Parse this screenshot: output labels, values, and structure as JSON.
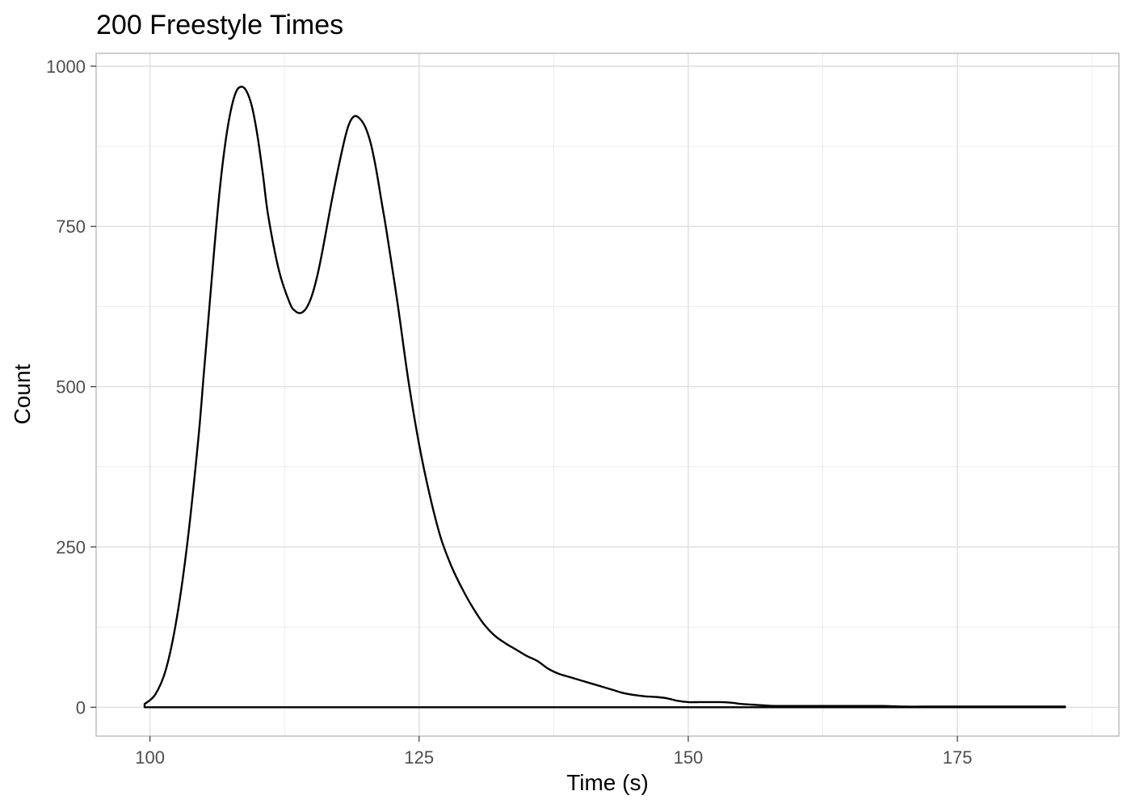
{
  "chart_data": {
    "type": "line",
    "title": "200 Freestyle Times",
    "xlabel": "Time (s)",
    "ylabel": "Count",
    "xlim": [
      95,
      190
    ],
    "ylim": [
      -45,
      1020
    ],
    "x_ticks": [
      100,
      125,
      150,
      175
    ],
    "x_tick_labels": [
      "100",
      "125",
      "150",
      "175"
    ],
    "y_ticks": [
      0,
      250,
      500,
      750,
      1000
    ],
    "y_tick_labels": [
      "0",
      "250",
      "500",
      "750",
      "1000"
    ],
    "x_minor_ticks": [
      112.5,
      137.5,
      162.5,
      187.5
    ],
    "y_minor_ticks": [
      125,
      375,
      625,
      875
    ],
    "grid": true,
    "legend": "none",
    "colors": {
      "line": "#000000",
      "grid_major": "#dedede",
      "grid_minor": "#ececec",
      "panel_border": "#b3b3b3",
      "tick_label": "#4d4d4d"
    },
    "series": [
      {
        "x": [
          99.5,
          100.5,
          101.5,
          102.5,
          103.5,
          104.5,
          105,
          105.5,
          106,
          106.5,
          107,
          107.5,
          108,
          108.5,
          109,
          109.5,
          110,
          110.5,
          111,
          112,
          113,
          113.5,
          114,
          114.5,
          115,
          115.5,
          116,
          117,
          118,
          118.5,
          119,
          119.5,
          120,
          120.5,
          121,
          121.5,
          122,
          123,
          124,
          125,
          126,
          127,
          128,
          129,
          130,
          131,
          132,
          133,
          134,
          135,
          136,
          137,
          138,
          139,
          140,
          141,
          142,
          143,
          144,
          145,
          146,
          147,
          148,
          149,
          150,
          151,
          152,
          153,
          154,
          155,
          156,
          157,
          158,
          160,
          162,
          164,
          166,
          168,
          170,
          172,
          175,
          178,
          181,
          183,
          185
        ],
        "y": [
          5,
          20,
          60,
          140,
          260,
          420,
          520,
          620,
          720,
          810,
          880,
          930,
          960,
          968,
          960,
          935,
          890,
          830,
          765,
          680,
          630,
          618,
          615,
          622,
          640,
          670,
          710,
          800,
          880,
          910,
          922,
          918,
          905,
          880,
          840,
          790,
          740,
          630,
          510,
          410,
          330,
          265,
          220,
          185,
          155,
          130,
          112,
          100,
          90,
          80,
          72,
          60,
          52,
          47,
          42,
          37,
          32,
          27,
          22,
          19,
          17,
          16,
          14,
          10,
          8,
          8,
          8,
          8,
          7,
          5,
          4,
          3,
          2,
          2,
          2,
          2,
          2,
          2,
          1,
          1,
          1,
          1,
          1,
          1,
          1
        ]
      }
    ]
  }
}
